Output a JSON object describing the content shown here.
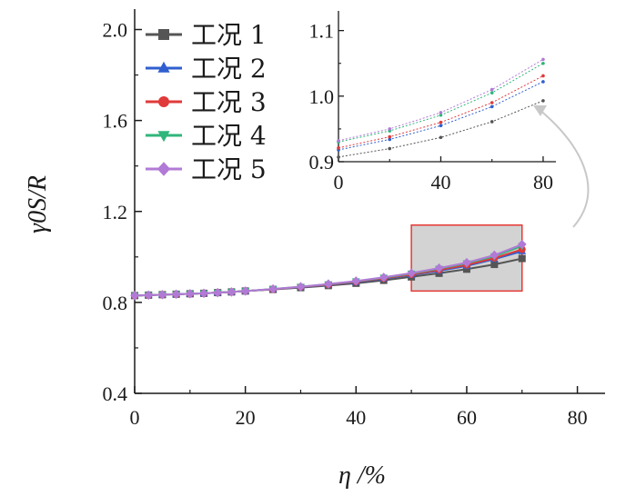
{
  "chart_data": {
    "type": "line",
    "title": "",
    "xlabel": "η /%",
    "ylabel": "γ0S/R",
    "xlim": [
      0,
      85
    ],
    "ylim": [
      0.4,
      2.05
    ],
    "xticks": [
      0,
      20,
      40,
      60,
      80
    ],
    "yticks": [
      0.4,
      0.8,
      1.2,
      1.6,
      2.0
    ],
    "xtick_labels": [
      "0",
      "20",
      "40",
      "60",
      "80"
    ],
    "ytick_labels": [
      "0.4",
      "0.8",
      "1.2",
      "1.6",
      "2.0"
    ],
    "grid": false,
    "legend_position": "top-left",
    "x": [
      0,
      2.5,
      5,
      7.5,
      10,
      12.5,
      15,
      17.5,
      20,
      25,
      30,
      35,
      40,
      45,
      50,
      55,
      60,
      65,
      70
    ],
    "series": [
      {
        "name": "工况 1",
        "color": "#555555",
        "marker": "square",
        "values": [
          0.83,
          0.832,
          0.834,
          0.836,
          0.838,
          0.84,
          0.843,
          0.846,
          0.85,
          0.857,
          0.865,
          0.874,
          0.884,
          0.897,
          0.912,
          0.928,
          0.946,
          0.967,
          0.993
        ]
      },
      {
        "name": "工况 2",
        "color": "#2f5fcf",
        "marker": "triangle-up",
        "values": [
          0.83,
          0.832,
          0.834,
          0.836,
          0.838,
          0.84,
          0.843,
          0.846,
          0.85,
          0.858,
          0.867,
          0.877,
          0.889,
          0.904,
          0.92,
          0.939,
          0.96,
          0.99,
          1.025
        ]
      },
      {
        "name": "工况 3",
        "color": "#e03a3a",
        "marker": "circle",
        "values": [
          0.83,
          0.832,
          0.834,
          0.836,
          0.838,
          0.84,
          0.843,
          0.846,
          0.85,
          0.858,
          0.868,
          0.878,
          0.891,
          0.906,
          0.923,
          0.943,
          0.965,
          0.995,
          1.033
        ]
      },
      {
        "name": "工况 4",
        "color": "#2fb67a",
        "marker": "triangle-down",
        "values": [
          0.83,
          0.832,
          0.834,
          0.836,
          0.838,
          0.84,
          0.843,
          0.846,
          0.85,
          0.859,
          0.869,
          0.88,
          0.893,
          0.909,
          0.927,
          0.948,
          0.972,
          1.003,
          1.048
        ]
      },
      {
        "name": "工况 5",
        "color": "#b17ad6",
        "marker": "diamond",
        "values": [
          0.83,
          0.832,
          0.834,
          0.836,
          0.838,
          0.84,
          0.843,
          0.846,
          0.85,
          0.859,
          0.869,
          0.881,
          0.894,
          0.91,
          0.929,
          0.951,
          0.975,
          1.008,
          1.055
        ]
      }
    ],
    "highlight_region": {
      "x": [
        50,
        70
      ],
      "y": [
        0.85,
        1.14
      ],
      "fill": "#d3d3d3",
      "stroke": "#e53935"
    },
    "inset": {
      "xlim": [
        0,
        85
      ],
      "ylim": [
        0.9,
        1.13
      ],
      "xticks": [
        0,
        40,
        80
      ],
      "yticks": [
        0.9,
        1.0,
        1.1
      ],
      "xtick_labels": [
        "0",
        "40",
        "80"
      ],
      "ytick_labels": [
        "0.9",
        "1.0",
        "1.1"
      ],
      "x": [
        0,
        20,
        40,
        60,
        80
      ],
      "series": [
        {
          "name": "工况 1",
          "values": [
            0.907,
            0.92,
            0.937,
            0.961,
            0.993
          ]
        },
        {
          "name": "工况 2",
          "values": [
            0.918,
            0.934,
            0.955,
            0.984,
            1.022
          ]
        },
        {
          "name": "工况 3",
          "values": [
            0.921,
            0.938,
            0.96,
            0.99,
            1.031
          ]
        },
        {
          "name": "工况 4",
          "values": [
            0.93,
            0.947,
            0.971,
            1.005,
            1.05
          ]
        },
        {
          "name": "工况 5",
          "values": [
            0.932,
            0.95,
            0.975,
            1.01,
            1.056
          ]
        }
      ]
    }
  }
}
